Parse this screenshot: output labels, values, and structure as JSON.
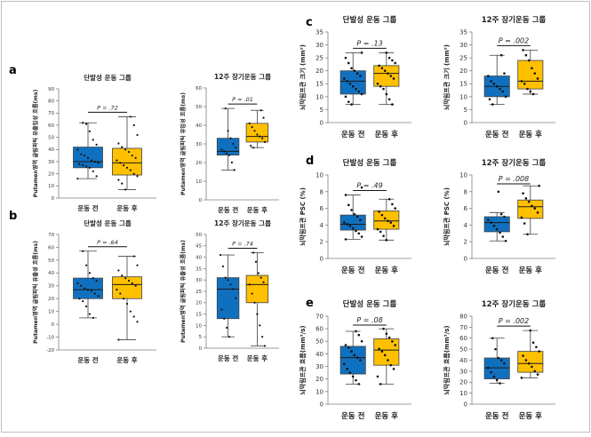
{
  "labels": {
    "a": "a",
    "b": "b",
    "c": "c",
    "d": "d",
    "e": "e"
  },
  "colors": {
    "before": "#1070c0",
    "after": "#ffc000",
    "edge": "#404040",
    "point": "#111111"
  },
  "chart_data": [
    {
      "id": "a-left",
      "panel": "a",
      "type": "box",
      "title": "단발성 운동 그룹",
      "ylabel": "Putamen영역 글림파틱 유출입성 흐름(ms)",
      "categories": [
        "운동 전",
        "운동 후"
      ],
      "ylim": [
        0,
        90
      ],
      "yticks": [
        0,
        10,
        20,
        30,
        40,
        50,
        60,
        70,
        80,
        90
      ],
      "p_text": "P = .72",
      "boxes": [
        {
          "q1": 25,
          "median": 30,
          "q3": 42,
          "whisker_low": 16,
          "whisker_high": 62,
          "points": [
            16,
            18,
            22,
            25,
            26,
            27,
            28,
            29,
            30,
            31,
            33,
            35,
            36,
            40,
            44,
            48,
            55,
            61,
            62
          ]
        },
        {
          "q1": 19,
          "median": 29,
          "q3": 41,
          "whisker_low": 7,
          "whisker_high": 67,
          "points": [
            7,
            12,
            15,
            18,
            20,
            23,
            25,
            27,
            29,
            31,
            33,
            35,
            38,
            40,
            42,
            45,
            52,
            60,
            67
          ]
        }
      ]
    },
    {
      "id": "a-right",
      "panel": "a",
      "type": "box",
      "title": "12주 장기운동 그룹",
      "ylabel": "Putamen영역 글림파틱 유입성 흐름(ms)",
      "categories": [
        "운동 전",
        "운동 후"
      ],
      "ylim": [
        0,
        60
      ],
      "yticks": [
        0,
        10,
        20,
        30,
        40,
        50,
        60
      ],
      "p_text": "P = .01",
      "boxes": [
        {
          "q1": 24,
          "median": 26,
          "q3": 33,
          "whisker_low": 16,
          "whisker_high": 49,
          "points": [
            16,
            20,
            24,
            25,
            26,
            27,
            28,
            30,
            33,
            37,
            49
          ]
        },
        {
          "q1": 31,
          "median": 34,
          "q3": 41,
          "whisker_low": 28,
          "whisker_high": 48,
          "points": [
            28,
            29,
            31,
            33,
            34,
            35,
            37,
            39,
            41,
            44,
            48
          ]
        }
      ]
    },
    {
      "id": "b-left",
      "panel": "b",
      "type": "box",
      "title": "단발성 운동 그룹",
      "ylabel": "Putamen영역 글림파틱 유출성 흐름(ms)",
      "categories": [
        "운동 전",
        "운동 후"
      ],
      "ylim": [
        -20,
        70
      ],
      "yticks": [
        -20,
        -10,
        0,
        10,
        20,
        30,
        40,
        50,
        60,
        70
      ],
      "p_text": "P = .64",
      "boxes": [
        {
          "q1": 20,
          "median": 27,
          "q3": 36,
          "whisker_low": 5,
          "whisker_high": 57,
          "points": [
            5,
            8,
            14,
            18,
            20,
            22,
            24,
            26,
            27,
            28,
            30,
            32,
            34,
            36,
            40,
            46,
            57
          ]
        },
        {
          "q1": 20,
          "median": 31,
          "q3": 37,
          "whisker_low": -12,
          "whisker_high": 53,
          "points": [
            -12,
            2,
            6,
            10,
            16,
            20,
            24,
            27,
            30,
            32,
            34,
            36,
            38,
            42,
            46,
            53
          ]
        }
      ]
    },
    {
      "id": "b-right",
      "panel": "b",
      "type": "box",
      "title": "12주 장기운동 그룹",
      "ylabel": "Putamen영역 글림파틱 유출성 흐름(ms)",
      "categories": [
        "운동 전",
        "운동 후"
      ],
      "ylim": [
        0,
        50
      ],
      "yticks": [
        0,
        5,
        10,
        15,
        20,
        25,
        30,
        35,
        40,
        45,
        50
      ],
      "p_text": "P = .74",
      "boxes": [
        {
          "q1": 13,
          "median": 26,
          "q3": 31,
          "whisker_low": 5,
          "whisker_high": 41,
          "points": [
            5,
            9,
            13,
            17,
            22,
            26,
            28,
            30,
            31,
            36,
            41
          ]
        },
        {
          "q1": 20,
          "median": 28,
          "q3": 32,
          "whisker_low": 1,
          "whisker_high": 42,
          "points": [
            1,
            5,
            10,
            15,
            20,
            24,
            28,
            29,
            31,
            33,
            38,
            42
          ]
        }
      ]
    },
    {
      "id": "c-left",
      "panel": "c",
      "type": "box",
      "title": "단발성 운동 그룹",
      "ylabel": "뇌막림프관 크기 (mm²)",
      "categories": [
        "운동 전",
        "운동 후"
      ],
      "ylim": [
        0,
        35
      ],
      "yticks": [
        0,
        5,
        10,
        15,
        20,
        25,
        30,
        35
      ],
      "p_text": "P = .13",
      "boxes": [
        {
          "q1": 11,
          "median": 16,
          "q3": 20,
          "whisker_low": 7,
          "whisker_high": 27,
          "points": [
            7,
            8,
            10,
            11,
            12,
            13,
            14,
            15,
            16,
            17,
            18,
            19,
            20,
            21,
            23,
            25,
            27
          ]
        },
        {
          "q1": 14,
          "median": 19,
          "q3": 22,
          "whisker_low": 7,
          "whisker_high": 27,
          "points": [
            7,
            9,
            11,
            13,
            14,
            15,
            17,
            18,
            19,
            20,
            21,
            22,
            23,
            24,
            25,
            27
          ]
        }
      ]
    },
    {
      "id": "c-right",
      "panel": "c",
      "type": "box",
      "title": "12주 장기운동 그룹",
      "ylabel": "뇌막림프관 크기 (mm²)",
      "categories": [
        "운동 전",
        "운동 후"
      ],
      "ylim": [
        0,
        35
      ],
      "yticks": [
        0,
        5,
        10,
        15,
        20,
        25,
        30,
        35
      ],
      "p_text": "P = .002",
      "boxes": [
        {
          "q1": 10,
          "median": 14,
          "q3": 18,
          "whisker_low": 7,
          "whisker_high": 26,
          "points": [
            7,
            9,
            10,
            12,
            13,
            14,
            15,
            16,
            18,
            19,
            26
          ]
        },
        {
          "q1": 13,
          "median": 16,
          "q3": 24,
          "whisker_low": 11,
          "whisker_high": 28,
          "points": [
            11,
            12,
            13,
            15,
            16,
            17,
            19,
            21,
            24,
            26,
            28
          ]
        }
      ]
    },
    {
      "id": "d-left",
      "panel": "d",
      "type": "box",
      "title": "단발성 운동 그룹",
      "ylabel": "뇌막림프관 PSC (%)",
      "categories": [
        "운동 전",
        "운동 후"
      ],
      "ylim": [
        0,
        10
      ],
      "yticks": [
        0,
        2,
        4,
        6,
        8,
        10
      ],
      "p_text": "P = .49",
      "boxes": [
        {
          "q1": 3.4,
          "median": 4.1,
          "q3": 5.2,
          "whisker_low": 2.3,
          "whisker_high": 7.6,
          "points": [
            2.3,
            2.6,
            3.0,
            3.3,
            3.6,
            3.9,
            4.1,
            4.3,
            4.6,
            5.0,
            5.3,
            5.8,
            6.4,
            7.6,
            8.5
          ]
        },
        {
          "q1": 3.5,
          "median": 4.5,
          "q3": 5.7,
          "whisker_low": 2.2,
          "whisker_high": 7.1,
          "points": [
            2.2,
            2.7,
            3.2,
            3.5,
            3.9,
            4.3,
            4.5,
            4.8,
            5.2,
            5.6,
            6.0,
            6.5,
            7.1
          ]
        }
      ]
    },
    {
      "id": "d-right",
      "panel": "d",
      "type": "box",
      "title": "12주 장기운동 그룹",
      "ylabel": "뇌막림프관 PSC (%)",
      "categories": [
        "운동 전",
        "운동 후"
      ],
      "ylim": [
        0,
        10
      ],
      "yticks": [
        0,
        2,
        4,
        6,
        8,
        10
      ],
      "p_text": "P = .008",
      "boxes": [
        {
          "q1": 3.2,
          "median": 4.3,
          "q3": 5.0,
          "whisker_low": 2.1,
          "whisker_high": 5.5,
          "points": [
            2.1,
            2.6,
            3.1,
            3.5,
            3.9,
            4.3,
            4.6,
            5.0,
            5.3,
            8.0
          ]
        },
        {
          "q1": 4.8,
          "median": 6.2,
          "q3": 7.0,
          "whisker_low": 2.9,
          "whisker_high": 8.7,
          "points": [
            2.9,
            4.2,
            4.9,
            5.5,
            6.0,
            6.3,
            6.8,
            7.2,
            7.8,
            8.7
          ]
        }
      ]
    },
    {
      "id": "e-left",
      "panel": "e",
      "type": "box",
      "title": "단발성 운동 그룹",
      "ylabel": "뇌막림프관 흐름(mm³/s)",
      "categories": [
        "운동 전",
        "운동 후"
      ],
      "ylim": [
        0,
        70
      ],
      "yticks": [
        0,
        10,
        20,
        30,
        40,
        50,
        60,
        70
      ],
      "p_text": "P = .08",
      "boxes": [
        {
          "q1": 24,
          "median": 37,
          "q3": 46,
          "whisker_low": 16,
          "whisker_high": 58,
          "points": [
            16,
            19,
            22,
            25,
            28,
            32,
            35,
            37,
            39,
            42,
            45,
            47,
            50,
            55,
            58
          ]
        },
        {
          "q1": 31,
          "median": 43,
          "q3": 52,
          "whisker_low": 16,
          "whisker_high": 60,
          "points": [
            16,
            22,
            28,
            31,
            35,
            39,
            42,
            44,
            47,
            50,
            53,
            56,
            60
          ]
        }
      ]
    },
    {
      "id": "e-right",
      "panel": "e",
      "type": "box",
      "title": "12주 장기운동 그룹",
      "ylabel": "뇌막림프관 흐름(mm³/s)",
      "categories": [
        "운동 전",
        "운동 후"
      ],
      "ylim": [
        0,
        80
      ],
      "yticks": [
        0,
        10,
        20,
        30,
        40,
        50,
        60,
        70,
        80
      ],
      "p_text": "P = .002",
      "boxes": [
        {
          "q1": 23,
          "median": 33,
          "q3": 42,
          "whisker_low": 19,
          "whisker_high": 60,
          "points": [
            19,
            22,
            25,
            29,
            33,
            37,
            40,
            42,
            50,
            60
          ]
        },
        {
          "q1": 29,
          "median": 37,
          "q3": 48,
          "whisker_low": 24,
          "whisker_high": 67,
          "points": [
            24,
            27,
            30,
            34,
            37,
            40,
            44,
            48,
            52,
            56,
            67
          ]
        }
      ]
    }
  ]
}
